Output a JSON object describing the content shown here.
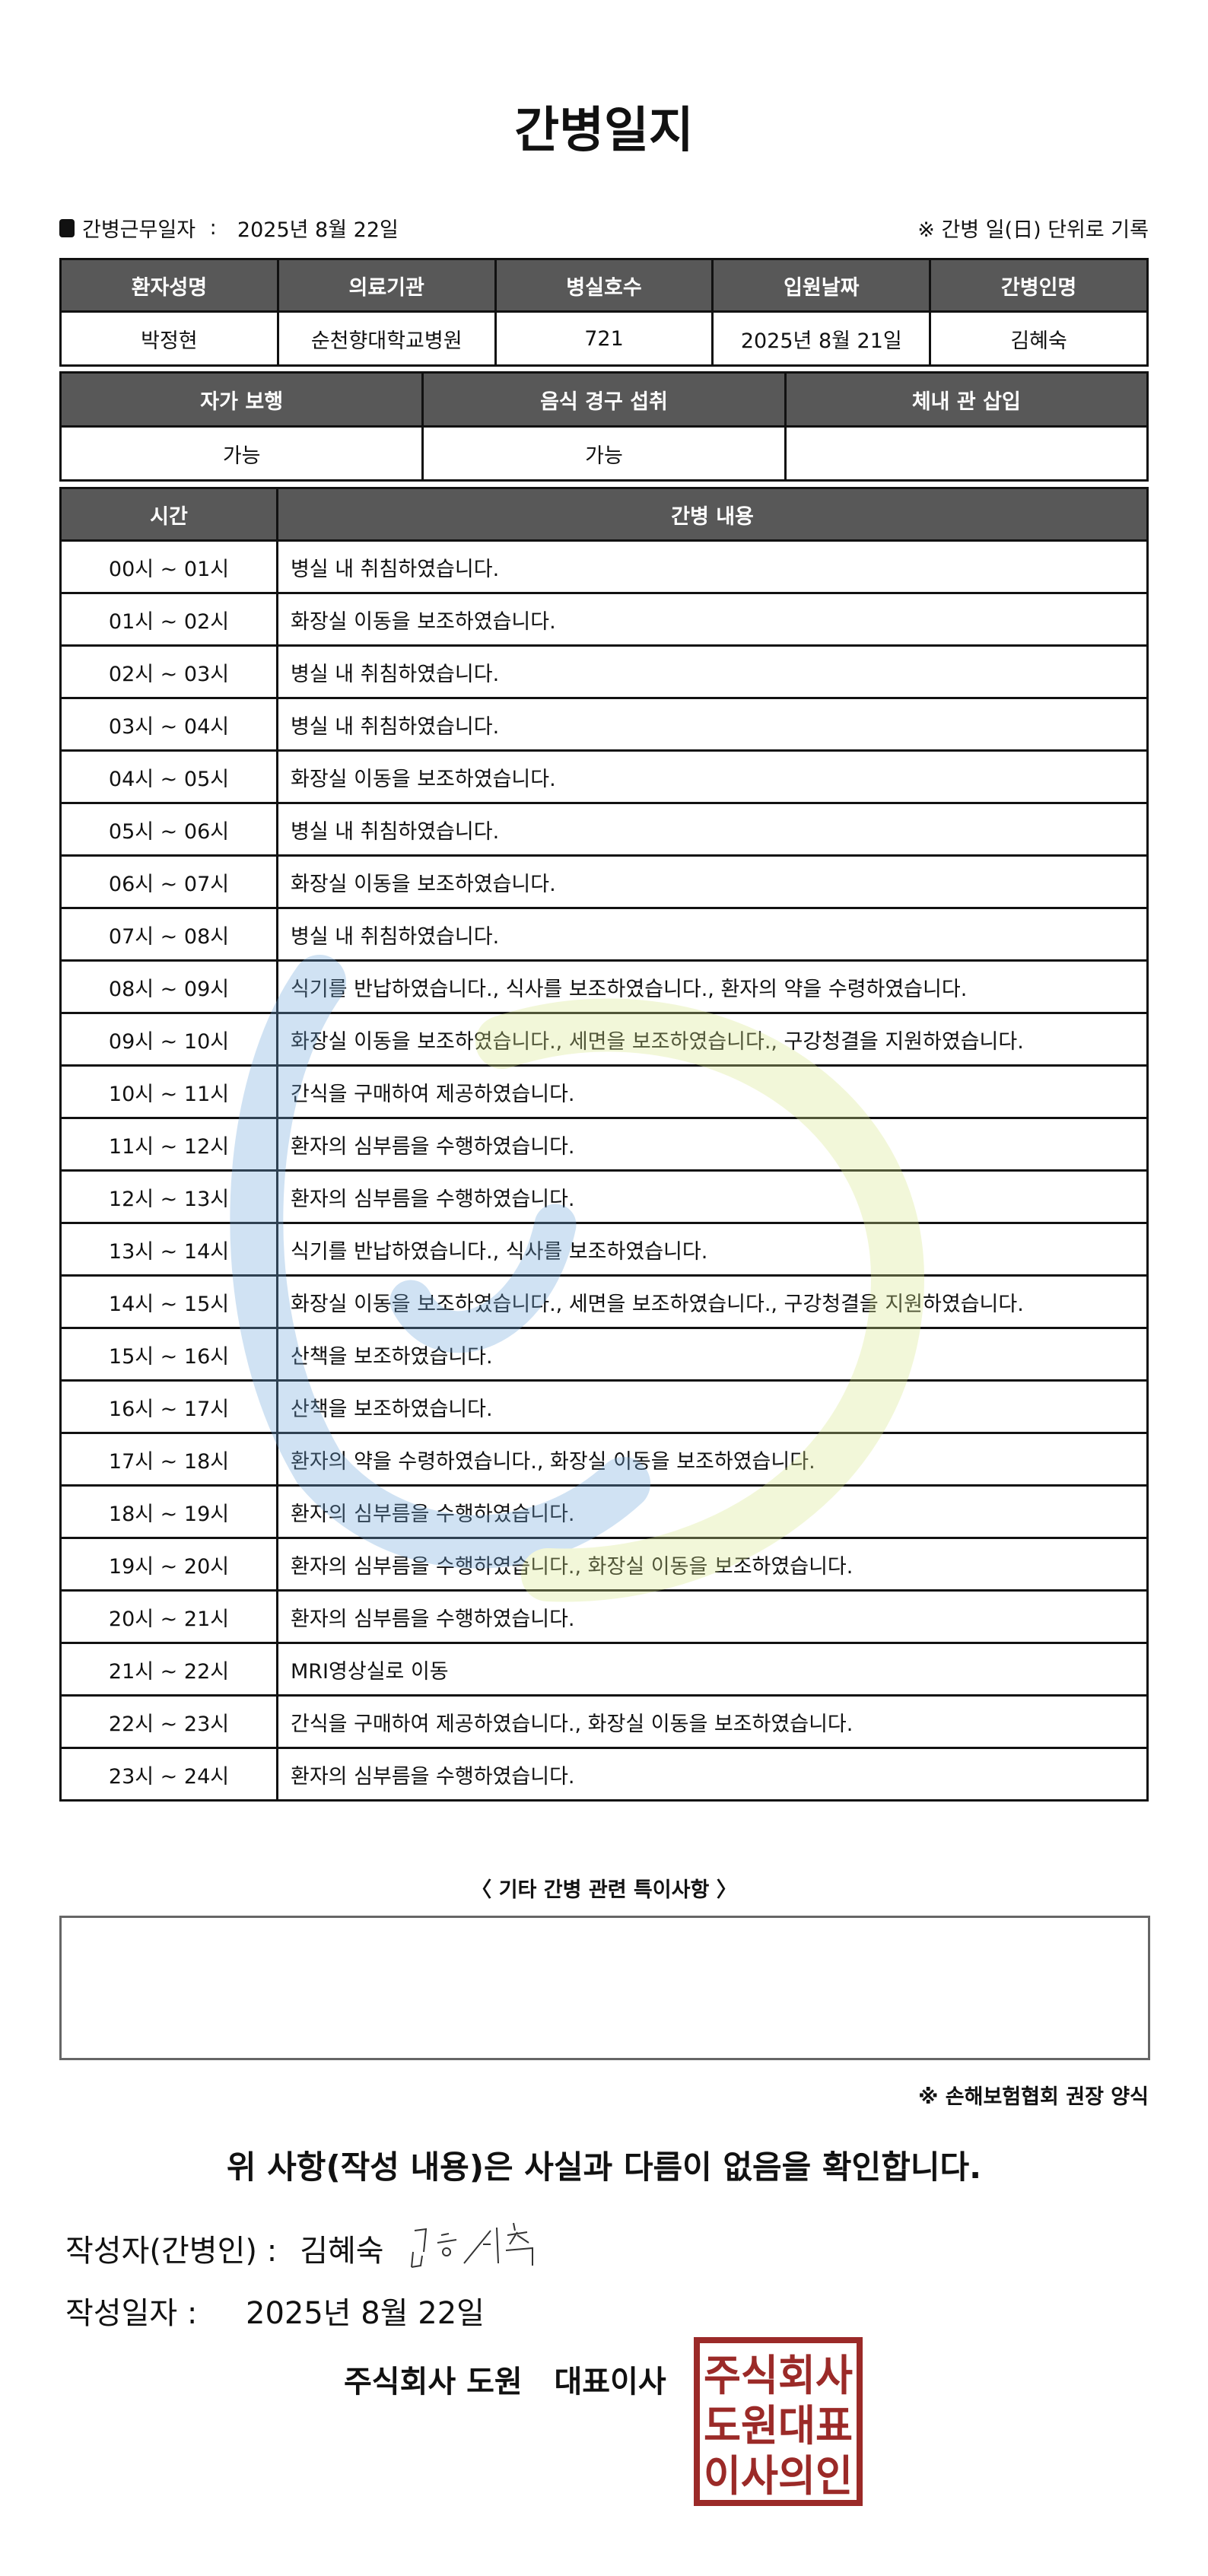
{
  "title": "간병일지",
  "info": {
    "work_date_label": "간병근무일자",
    "work_date": "2025년 8월 22일",
    "note": "※ 간병 일(日) 단위로 기록"
  },
  "patient_table": {
    "headers": [
      "환자성명",
      "의료기관",
      "병실호수",
      "입원날짜",
      "간병인명"
    ],
    "values": [
      "박정현",
      "순천향대학교병원",
      "721",
      "2025년 8월 21일",
      "김혜숙"
    ]
  },
  "status_table": {
    "headers": [
      "자가 보행",
      "음식 경구 섭취",
      "체내 관 삽입"
    ],
    "values": [
      "가능",
      "가능",
      ""
    ]
  },
  "log_table": {
    "headers": [
      "시간",
      "간병 내용"
    ],
    "rows": [
      {
        "time": "00시 ~ 01시",
        "content": "병실 내 취침하였습니다."
      },
      {
        "time": "01시 ~ 02시",
        "content": "화장실 이동을 보조하였습니다."
      },
      {
        "time": "02시 ~ 03시",
        "content": "병실 내 취침하였습니다."
      },
      {
        "time": "03시 ~ 04시",
        "content": "병실 내 취침하였습니다."
      },
      {
        "time": "04시 ~ 05시",
        "content": "화장실 이동을 보조하였습니다."
      },
      {
        "time": "05시 ~ 06시",
        "content": "병실 내 취침하였습니다."
      },
      {
        "time": "06시 ~ 07시",
        "content": "화장실 이동을 보조하였습니다."
      },
      {
        "time": "07시 ~ 08시",
        "content": "병실 내 취침하였습니다."
      },
      {
        "time": "08시 ~ 09시",
        "content": "식기를 반납하였습니다., 식사를 보조하였습니다., 환자의 약을 수령하였습니다."
      },
      {
        "time": "09시 ~ 10시",
        "content": "화장실 이동을 보조하였습니다., 세면을 보조하였습니다., 구강청결을 지원하였습니다."
      },
      {
        "time": "10시 ~ 11시",
        "content": "간식을 구매하여 제공하였습니다."
      },
      {
        "time": "11시 ~ 12시",
        "content": "환자의 심부름을 수행하였습니다."
      },
      {
        "time": "12시 ~ 13시",
        "content": "환자의 심부름을 수행하였습니다."
      },
      {
        "time": "13시 ~ 14시",
        "content": "식기를 반납하였습니다., 식사를 보조하였습니다."
      },
      {
        "time": "14시 ~ 15시",
        "content": "화장실 이동을 보조하였습니다., 세면을 보조하였습니다., 구강청결을 지원하였습니다."
      },
      {
        "time": "15시 ~ 16시",
        "content": "산책을 보조하였습니다."
      },
      {
        "time": "16시 ~ 17시",
        "content": "산책을 보조하였습니다."
      },
      {
        "time": "17시 ~ 18시",
        "content": "환자의 약을 수령하였습니다., 화장실 이동을 보조하였습니다."
      },
      {
        "time": "18시 ~ 19시",
        "content": "환자의 심부름을 수행하였습니다."
      },
      {
        "time": "19시 ~ 20시",
        "content": "환자의 심부름을 수행하였습니다., 화장실 이동을 보조하였습니다."
      },
      {
        "time": "20시 ~ 21시",
        "content": "환자의 심부름을 수행하였습니다."
      },
      {
        "time": "21시 ~ 22시",
        "content": "MRI영상실로 이동"
      },
      {
        "time": "22시 ~ 23시",
        "content": "간식을 구매하여 제공하였습니다., 화장실 이동을 보조하였습니다."
      },
      {
        "time": "23시 ~ 24시",
        "content": "환자의 심부름을 수행하였습니다."
      }
    ]
  },
  "notes": {
    "title": "〈 기타 간병 관련 특이사항 〉",
    "content": ""
  },
  "form_note": "※ 손해보험협회 권장 양식",
  "confirm": "위 사항(작성 내용)은 사실과 다름이 없음을 확인합니다.",
  "writer": {
    "label": "작성자(간병인) :",
    "name": "김혜숙",
    "signature": "김혜숙"
  },
  "written_date": {
    "label": "작성일자 :",
    "value": "2025년 8월 22일"
  },
  "company": "주식회사 도원   대표이사",
  "stamp": {
    "text": [
      "주식회사",
      "도원대표",
      "이사의인"
    ],
    "color": "#9b2a28"
  },
  "colors": {
    "header_bg": "#585858",
    "watermark_blue": "#6fa8dc",
    "watermark_green": "#d9e88a"
  }
}
